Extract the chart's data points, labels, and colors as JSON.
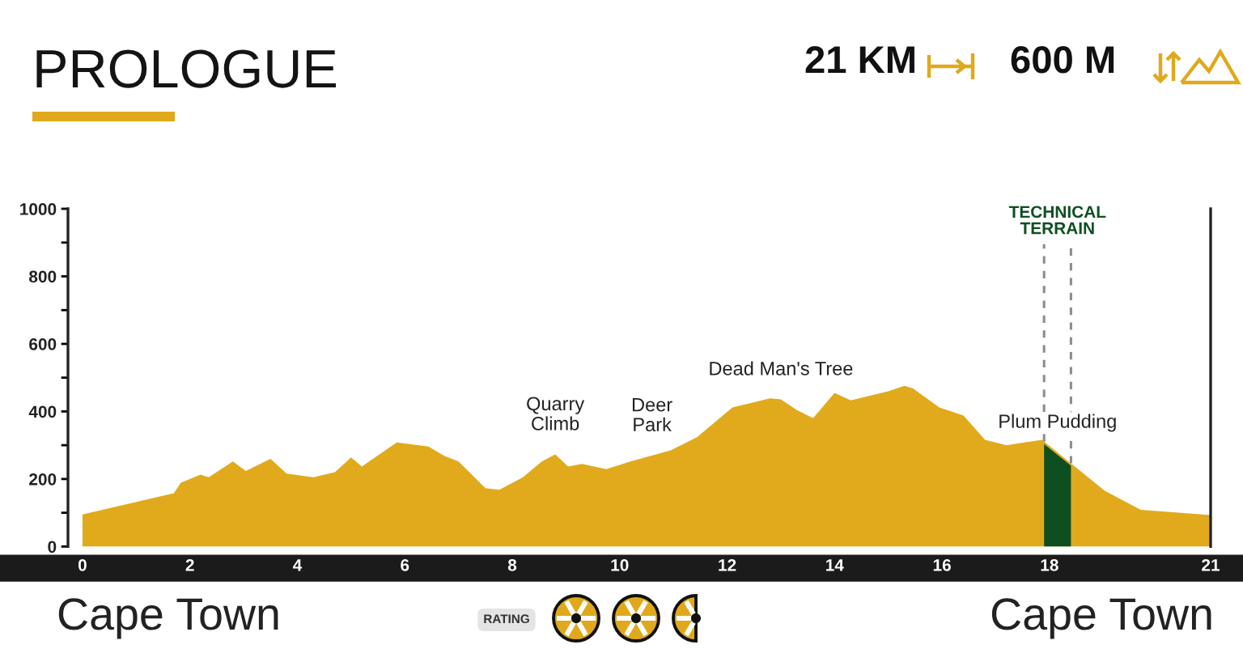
{
  "chart_data": {
    "type": "area",
    "title": "PROLOGUE",
    "color": "#e1aa1c",
    "x": [
      0,
      1.7,
      1.83,
      2.2,
      2.35,
      2.8,
      3.04,
      3.5,
      3.8,
      4.3,
      4.7,
      5.0,
      5.2,
      5.85,
      6.0,
      6.44,
      6.74,
      7.0,
      7.5,
      7.76,
      8.2,
      8.55,
      8.8,
      9.04,
      9.3,
      9.75,
      10.2,
      10.95,
      11.44,
      12.1,
      12.8,
      13.0,
      13.3,
      13.6,
      14.0,
      14.3,
      15.0,
      15.3,
      15.46,
      15.95,
      16.4,
      16.8,
      17.2,
      17.86,
      19.03,
      19.7,
      21
    ],
    "values": [
      95,
      158,
      189,
      213,
      205,
      252,
      224,
      260,
      216,
      205,
      220,
      264,
      237,
      308,
      305,
      296,
      268,
      252,
      173,
      168,
      205,
      252,
      273,
      237,
      245,
      229,
      252,
      285,
      324,
      412,
      439,
      436,
      404,
      380,
      455,
      433,
      460,
      476,
      468,
      412,
      388,
      316,
      300,
      316,
      165,
      109,
      93
    ],
    "xlim": [
      -0.27,
      21
    ],
    "ylim": [
      0,
      1000
    ],
    "xticks": [
      0,
      2,
      4,
      6,
      8,
      10,
      12,
      14,
      16,
      18,
      21
    ],
    "yticks": [
      0,
      {
        "value": 100,
        "label": null
      },
      200,
      {
        "value": 300,
        "label": null
      },
      400,
      {
        "value": 500,
        "label": null
      },
      600,
      {
        "value": 700,
        "label": null
      },
      800,
      {
        "value": 900,
        "label": null
      },
      1000
    ],
    "grid": false,
    "bands": [
      {
        "axis": "x",
        "from": 17.9,
        "to": 18.4,
        "label": "TECHNICAL\nTERRAIN",
        "color": "#0e4f22"
      }
    ],
    "annotations": [
      "21 KM",
      "600 M",
      "Cape Town",
      "Cape Town",
      "RATING",
      {
        "text": "Quarry\nClimb",
        "x": 8.8,
        "y": 273
      },
      {
        "text": "Deer\nPark",
        "x": 10.6,
        "y": 270
      },
      {
        "text": "Dead Man's Tree",
        "x": 13.0,
        "y": 436
      },
      {
        "text": "Plum Pudding",
        "x": 18.15,
        "y": 280
      }
    ]
  }
}
